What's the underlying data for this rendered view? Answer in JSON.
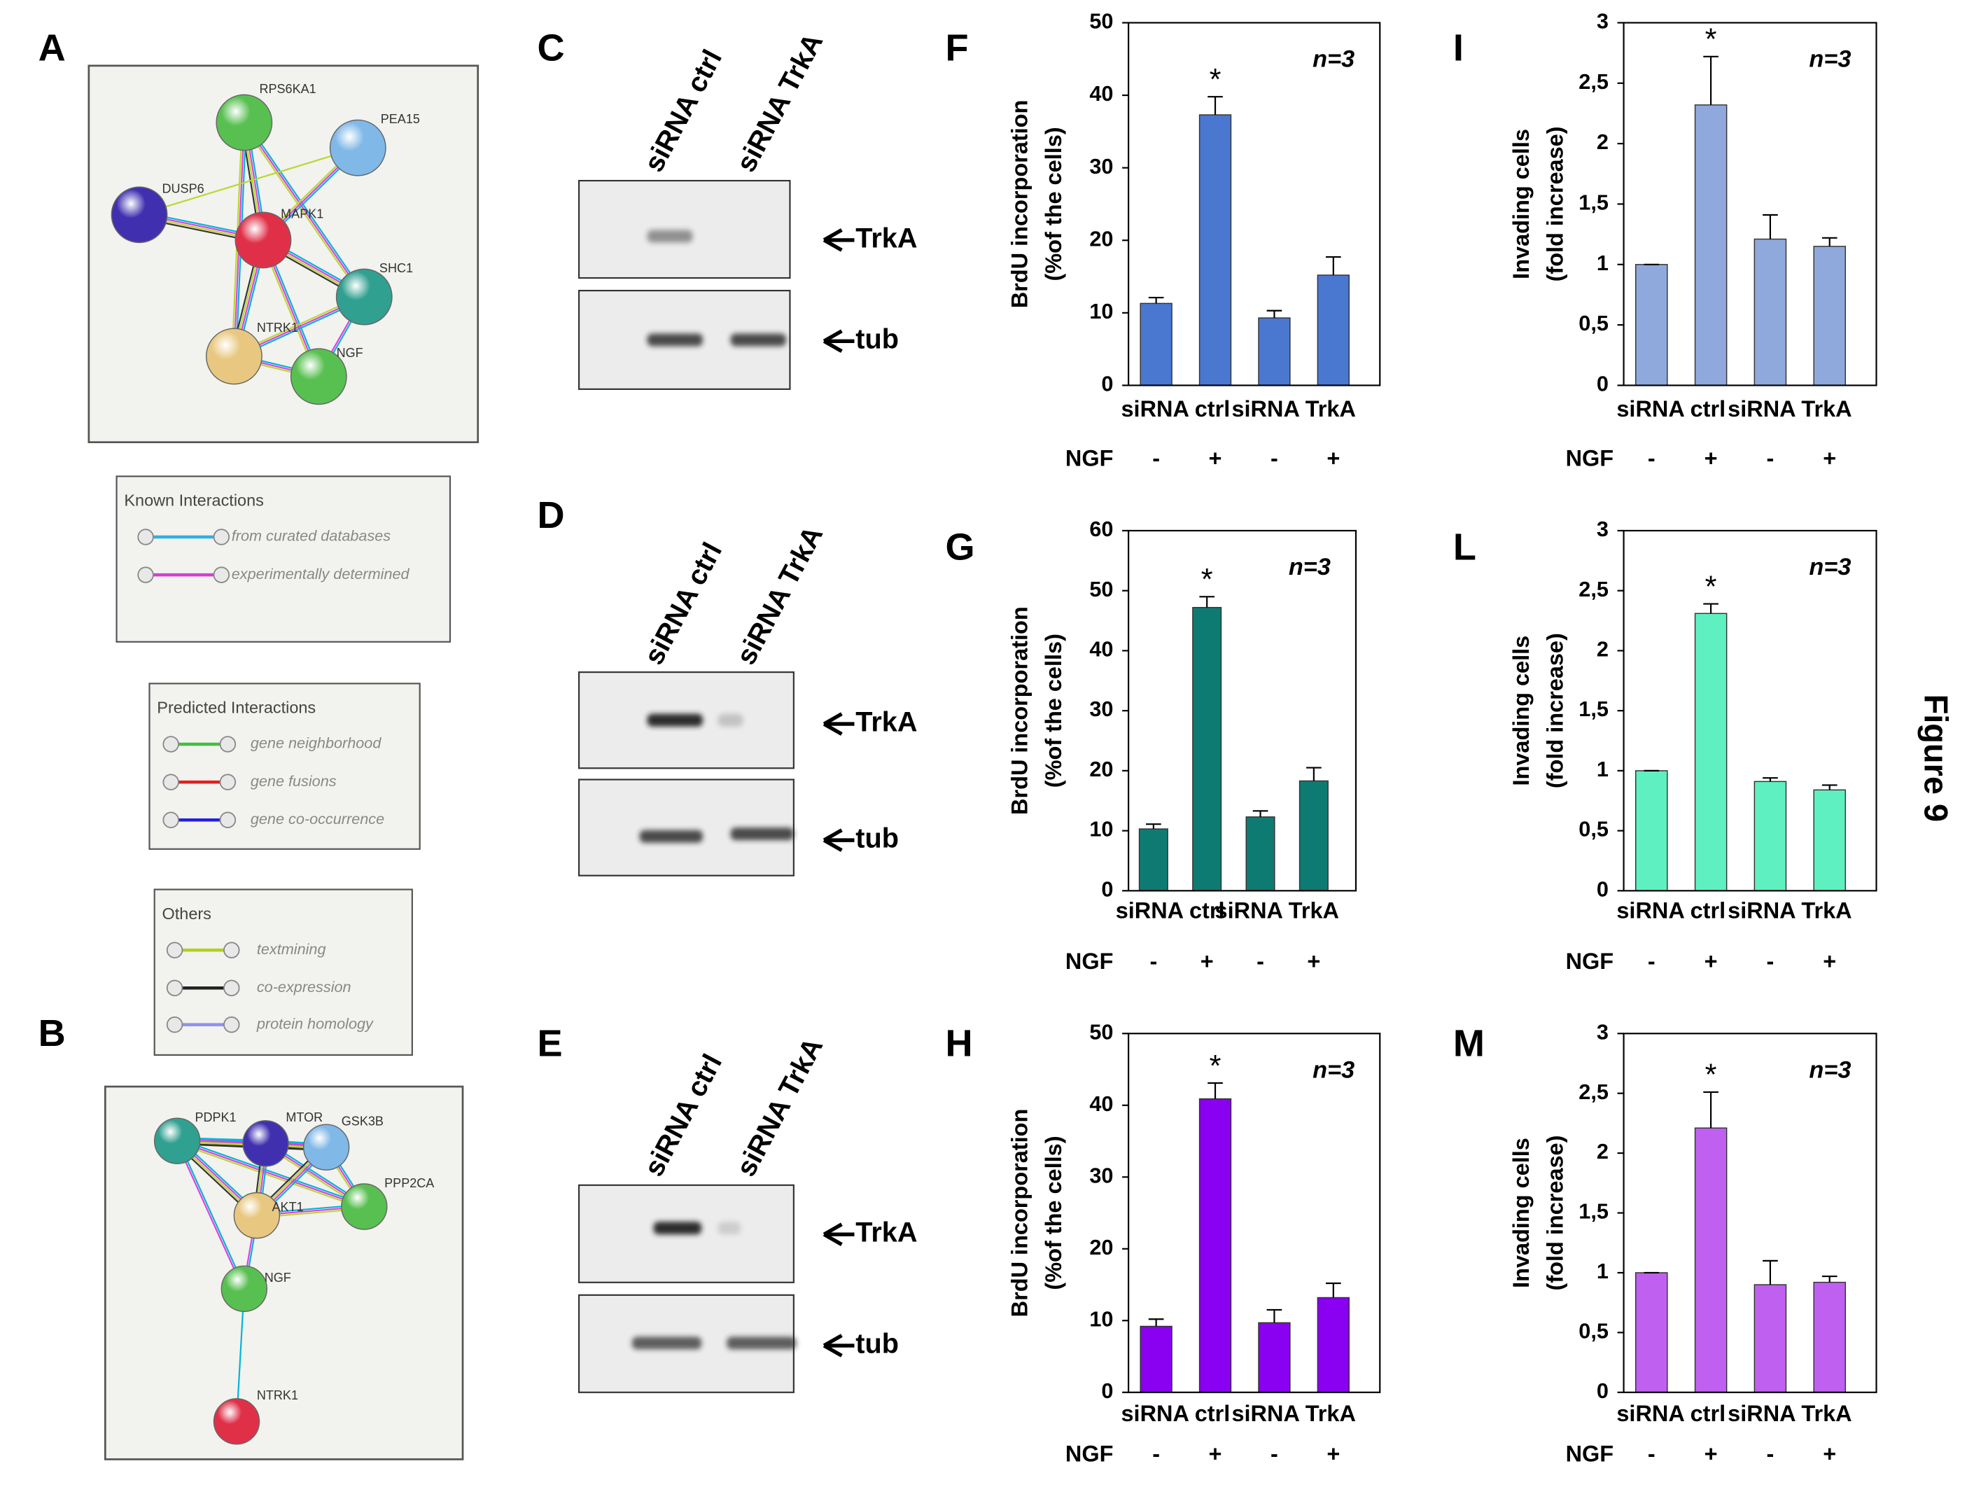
{
  "figure_label": "Figure 9",
  "networks": [
    {
      "label": "A",
      "nodes": [
        "RPS6KA1",
        "PEA15",
        "DUSP6",
        "MAPK1",
        "SHC1",
        "NTRK1",
        "NGF"
      ]
    },
    {
      "label": "B",
      "nodes": [
        "PDPK1",
        "MTOR",
        "GSK3B",
        "PPP2CA",
        "AKT1",
        "NGF",
        "NTRK1"
      ]
    }
  ],
  "legends": [
    {
      "title": "Known Interactions",
      "items": [
        "from curated databases",
        "experimentally determined"
      ]
    },
    {
      "title": "Predicted Interactions",
      "items": [
        "gene neighborhood",
        "gene fusions",
        "gene co-occurrence"
      ]
    },
    {
      "title": "Others",
      "items": [
        "textmining",
        "co-expression",
        "protein homology"
      ]
    }
  ],
  "blots": [
    {
      "label": "C",
      "lanes": [
        "siRNA ctrl",
        "siRNA TrkA"
      ],
      "bands": [
        "TrkA",
        "tub"
      ]
    },
    {
      "label": "D",
      "lanes": [
        "siRNA ctrl",
        "siRNA TrkA"
      ],
      "bands": [
        "TrkA",
        "tub"
      ]
    },
    {
      "label": "E",
      "lanes": [
        "siRNA ctrl",
        "siRNA TrkA"
      ],
      "bands": [
        "TrkA",
        "tub"
      ]
    }
  ],
  "chart_data": [
    {
      "type": "bar",
      "label": "F",
      "annotation": "n=3",
      "ylabel": [
        "BrdU incorporation",
        "(%of the cells)"
      ],
      "groups": [
        "siRNA ctrl",
        "siRNA TrkA"
      ],
      "row_label": "NGF",
      "categories": [
        "-",
        "+",
        "-",
        "+"
      ],
      "values": [
        11.3,
        37.3,
        9.3,
        15.2
      ],
      "errors": [
        0.8,
        2.5,
        1.0,
        2.5
      ],
      "markers": [
        null,
        "*",
        null,
        null
      ],
      "color": "#4a78d0",
      "ylim": [
        0,
        50
      ],
      "yticks": [
        0,
        10,
        20,
        30,
        40,
        50
      ]
    },
    {
      "type": "bar",
      "label": "I",
      "annotation": "n=3",
      "ylabel": [
        "Invading cells",
        "(fold increase)"
      ],
      "groups": [
        "siRNA ctrl",
        "siRNA TrkA"
      ],
      "row_label": "NGF",
      "categories": [
        "-",
        "+",
        "-",
        "+"
      ],
      "values": [
        1,
        2.32,
        1.21,
        1.15
      ],
      "errors": [
        0,
        0.4,
        0.2,
        0.07
      ],
      "markers": [
        null,
        "*",
        null,
        null
      ],
      "color": "#8fa9dc",
      "ylim": [
        0,
        3
      ],
      "yticks": [
        0,
        {
          "value": 0.5,
          "label": "0,5"
        },
        1,
        {
          "value": 1.5,
          "label": "1,5"
        },
        2,
        {
          "value": 2.5,
          "label": "2,5"
        },
        3
      ]
    },
    {
      "type": "bar",
      "label": "G",
      "annotation": "n=3",
      "ylabel": [
        "BrdU incorporation",
        "(%of the cells)"
      ],
      "groups": [
        "siRNA ctrl",
        "siRNA TrkA"
      ],
      "row_label": "NGF",
      "categories": [
        "-",
        "+",
        "-",
        "+"
      ],
      "values": [
        10.3,
        47.2,
        12.3,
        18.3
      ],
      "errors": [
        0.8,
        1.8,
        1.0,
        2.2
      ],
      "markers": [
        null,
        "*",
        null,
        null
      ],
      "color": "#0e7b73",
      "ylim": [
        0,
        60
      ],
      "yticks": [
        0,
        10,
        20,
        30,
        40,
        50,
        60
      ]
    },
    {
      "type": "bar",
      "label": "L",
      "annotation": "n=3",
      "ylabel": [
        "Invading cells",
        "(fold increase)"
      ],
      "groups": [
        "siRNA ctrl",
        "siRNA TrkA"
      ],
      "row_label": "NGF",
      "categories": [
        "-",
        "+",
        "-",
        "+"
      ],
      "values": [
        1,
        2.31,
        0.91,
        0.84
      ],
      "errors": [
        0,
        0.08,
        0.03,
        0.04
      ],
      "markers": [
        null,
        "*",
        null,
        null
      ],
      "color": "#5ef0c0",
      "ylim": [
        0,
        3
      ],
      "yticks": [
        0,
        {
          "value": 0.5,
          "label": "0,5"
        },
        1,
        {
          "value": 1.5,
          "label": "1,5"
        },
        2,
        {
          "value": 2.5,
          "label": "2,5"
        },
        3
      ]
    },
    {
      "type": "bar",
      "label": "H",
      "annotation": "n=3",
      "ylabel": [
        "BrdU incorporation",
        "(%of the cells)"
      ],
      "groups": [
        "siRNA ctrl",
        "siRNA TrkA"
      ],
      "row_label": "NGF",
      "categories": [
        "-",
        "+",
        "-",
        "+"
      ],
      "values": [
        9.2,
        40.9,
        9.7,
        13.2
      ],
      "errors": [
        1.0,
        2.2,
        1.8,
        2.0
      ],
      "markers": [
        null,
        "*",
        null,
        null
      ],
      "color": "#8a00f0",
      "ylim": [
        0,
        50
      ],
      "yticks": [
        0,
        10,
        20,
        30,
        40,
        50
      ]
    },
    {
      "type": "bar",
      "label": "M",
      "annotation": "n=3",
      "ylabel": [
        "Invading cells",
        "(fold increase)"
      ],
      "groups": [
        "siRNA ctrl",
        "siRNA TrkA"
      ],
      "row_label": "NGF",
      "categories": [
        "-",
        "+",
        "-",
        "+"
      ],
      "values": [
        1,
        2.21,
        0.9,
        0.92
      ],
      "errors": [
        0,
        0.3,
        0.2,
        0.05
      ],
      "markers": [
        null,
        "*",
        null,
        null
      ],
      "color": "#c060f0",
      "ylim": [
        0,
        3
      ],
      "yticks": [
        0,
        {
          "value": 0.5,
          "label": "0,5"
        },
        1,
        {
          "value": 1.5,
          "label": "1,5"
        },
        2,
        {
          "value": 2.5,
          "label": "2,5"
        },
        3
      ]
    }
  ]
}
